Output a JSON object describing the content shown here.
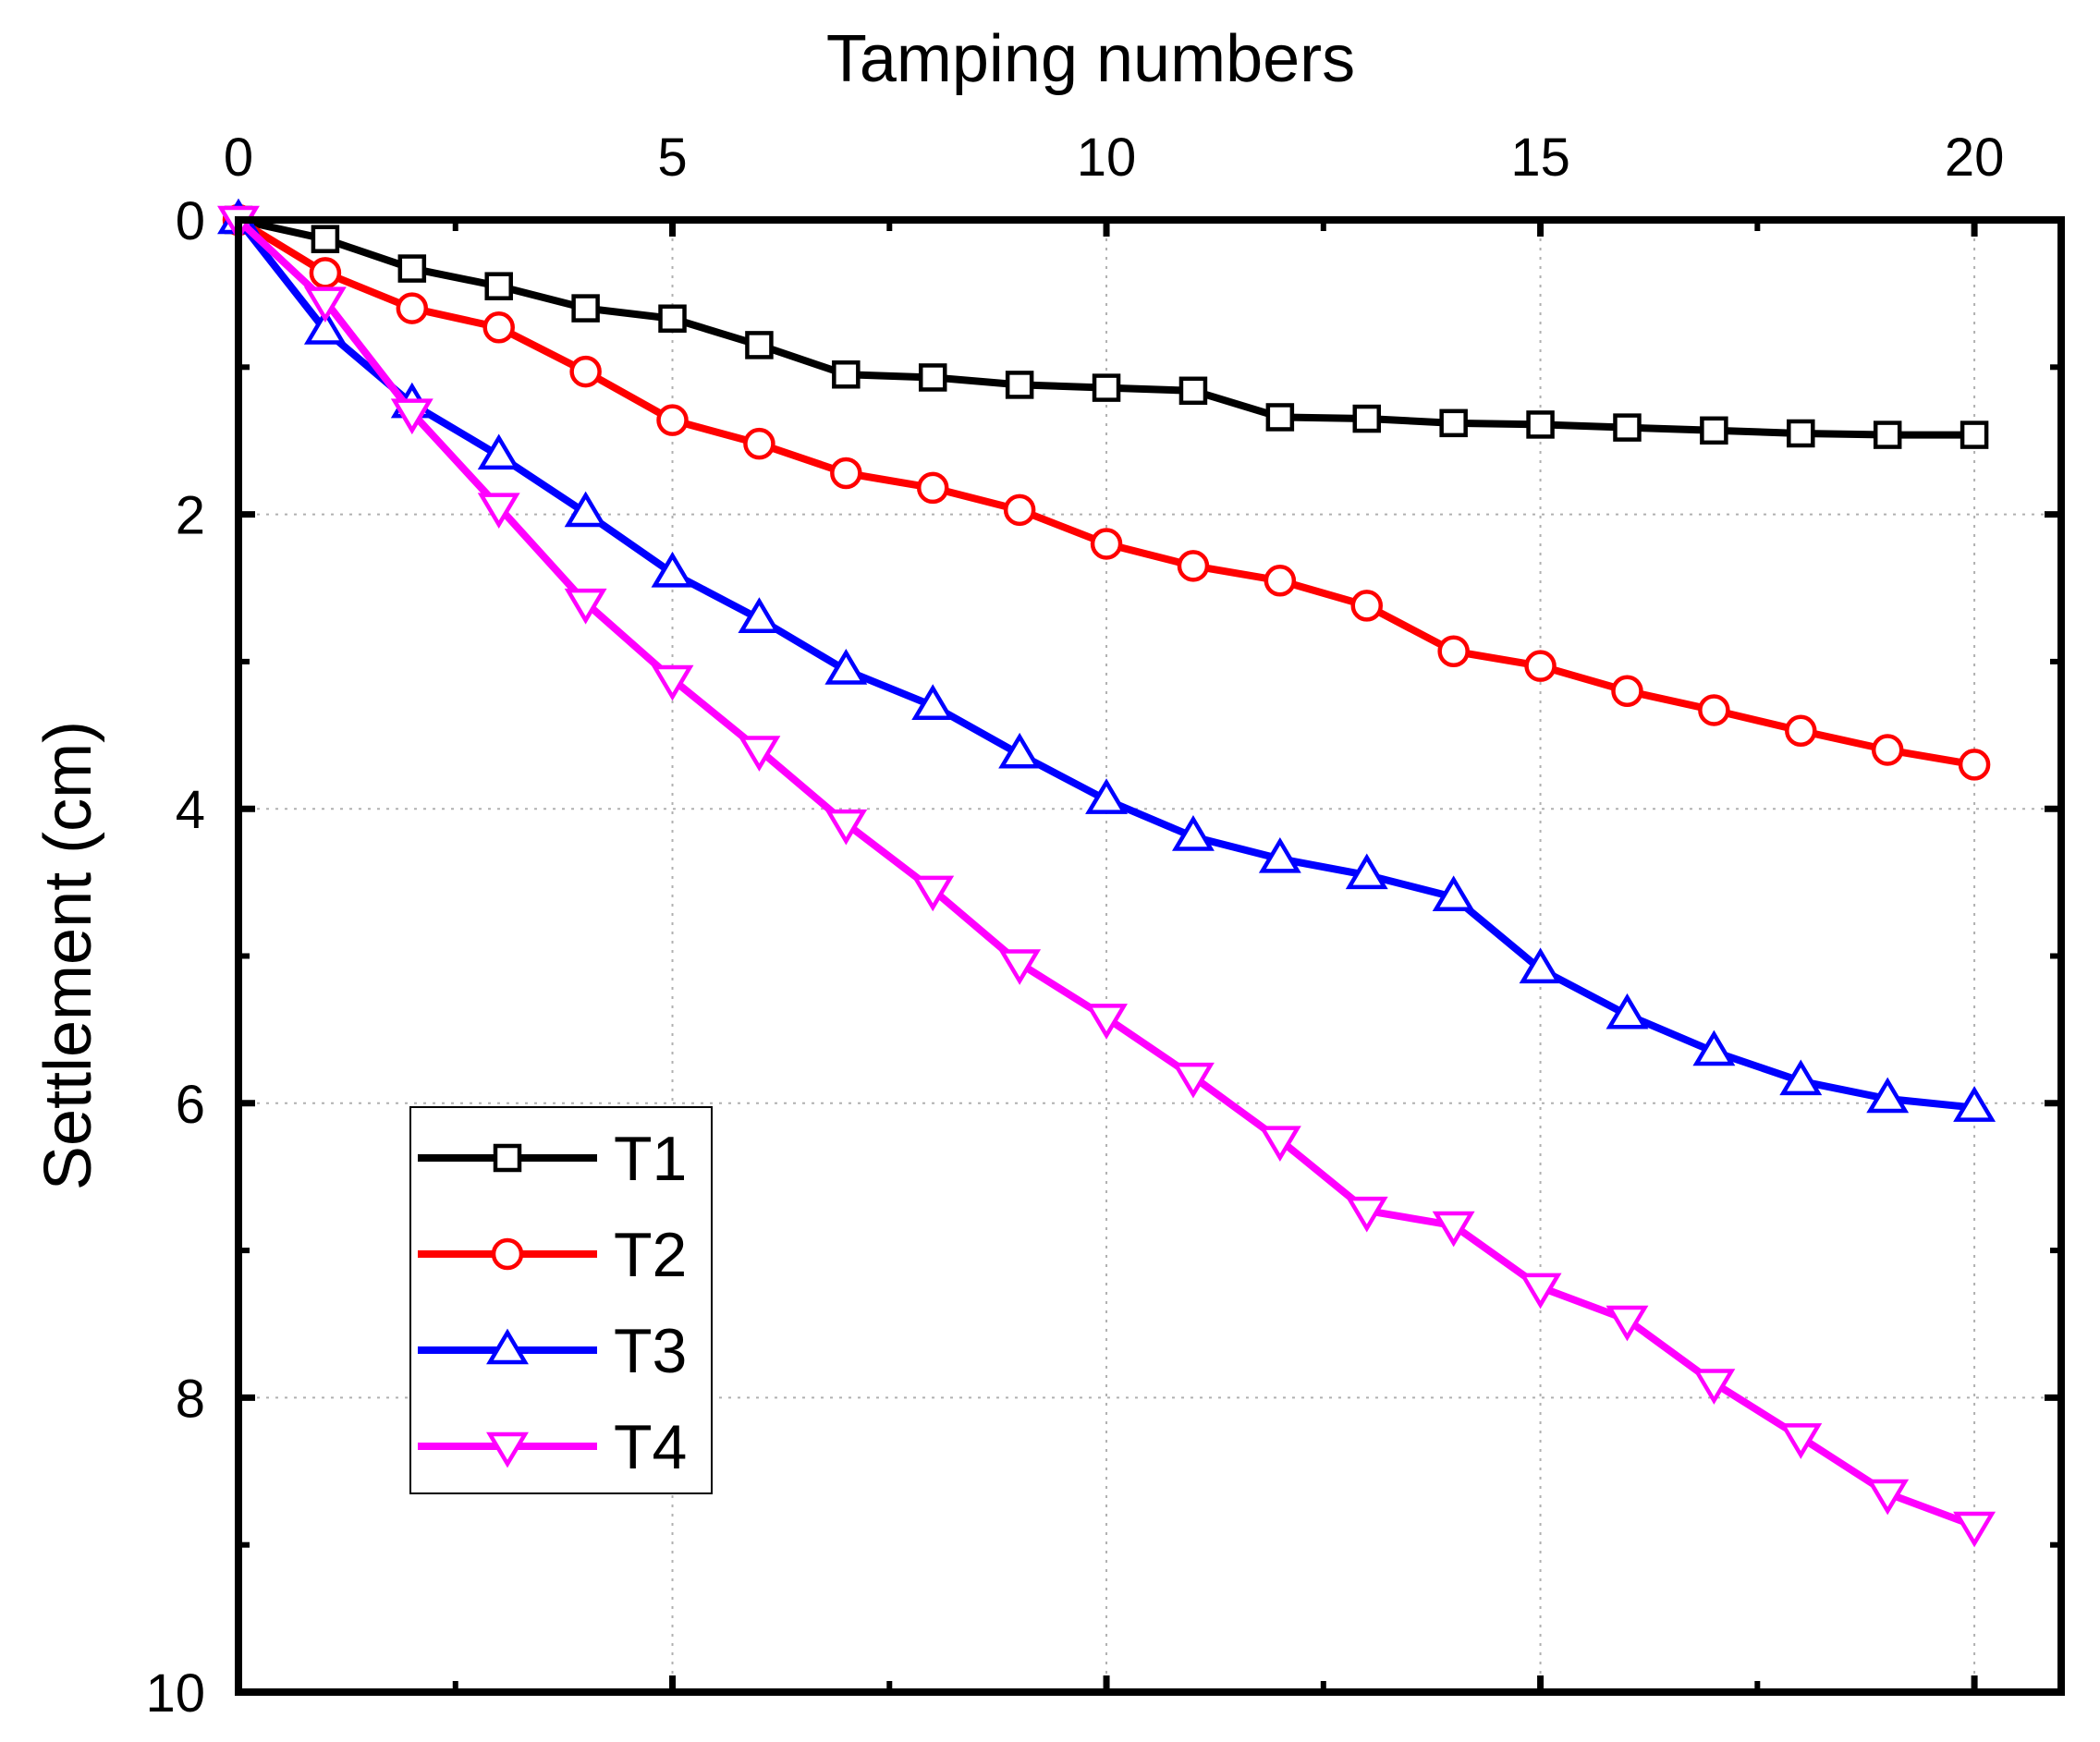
{
  "chart_data": {
    "type": "line",
    "title": "",
    "xlabel": "Tamping numbers",
    "ylabel": "Settlement (cm)",
    "xlim": [
      0,
      21
    ],
    "ylim": [
      0,
      10
    ],
    "y_inverted": true,
    "x_axis_position": "top",
    "grid": true,
    "legend_position": "lower-left",
    "x_ticks": [
      "0",
      "5",
      "10",
      "15",
      "20"
    ],
    "y_ticks": [
      "0",
      "2",
      "4",
      "6",
      "8",
      "10"
    ],
    "x": [
      0,
      1,
      2,
      3,
      4,
      5,
      6,
      7,
      8,
      9,
      10,
      11,
      12,
      13,
      14,
      15,
      16,
      17,
      18,
      19,
      20
    ],
    "series": [
      {
        "name": "T1",
        "color": "#000000",
        "marker": "square",
        "values": [
          0,
          0.13,
          0.33,
          0.45,
          0.6,
          0.67,
          0.85,
          1.05,
          1.07,
          1.12,
          1.14,
          1.16,
          1.34,
          1.35,
          1.38,
          1.39,
          1.41,
          1.43,
          1.45,
          1.46,
          1.46
        ]
      },
      {
        "name": "T2",
        "color": "#ff0000",
        "marker": "circle",
        "values": [
          0,
          0.36,
          0.6,
          0.73,
          1.03,
          1.36,
          1.52,
          1.72,
          1.82,
          1.97,
          2.2,
          2.35,
          2.45,
          2.62,
          2.93,
          3.03,
          3.2,
          3.33,
          3.47,
          3.6,
          3.7
        ]
      },
      {
        "name": "T3",
        "color": "#0000ff",
        "marker": "triangle-up",
        "values": [
          0,
          0.75,
          1.25,
          1.6,
          1.99,
          2.4,
          2.71,
          3.06,
          3.3,
          3.63,
          3.94,
          4.19,
          4.34,
          4.45,
          4.6,
          5.09,
          5.4,
          5.65,
          5.85,
          5.97,
          6.03
        ]
      },
      {
        "name": "T4",
        "color": "#ff00ff",
        "marker": "triangle-down",
        "values": [
          0,
          0.55,
          1.31,
          1.95,
          2.6,
          3.12,
          3.6,
          4.1,
          4.55,
          5.05,
          5.42,
          5.82,
          6.25,
          6.73,
          6.83,
          7.25,
          7.47,
          7.9,
          8.27,
          8.65,
          8.87
        ]
      }
    ]
  }
}
